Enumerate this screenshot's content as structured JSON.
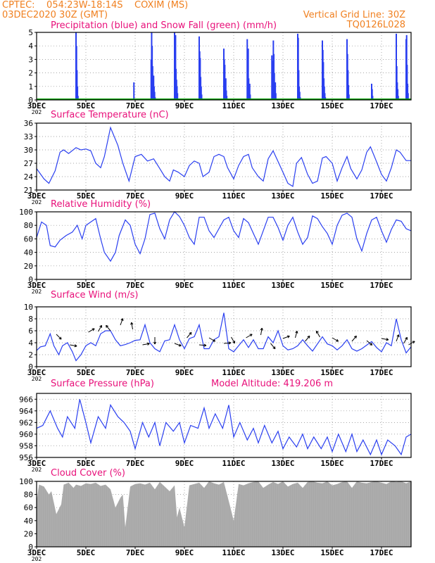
{
  "header": {
    "line1": "CPTEC:    054:23W-18:14S    COXIM (MS)",
    "line2": "03DEC2020 30Z (GMT)",
    "right1": "Vertical Grid Line: 30Z",
    "right2": "TQ0126L028",
    "color": "#f08020"
  },
  "colors": {
    "line": "#2a3ff0",
    "snow": "#00a000",
    "title": "#e8107a",
    "cloud": "#a8a8a8",
    "frame": "#000000"
  },
  "x_axis": {
    "start_day": 3,
    "end_day": 18.2,
    "tick_days": [
      3,
      5,
      7,
      9,
      11,
      13,
      15,
      17
    ],
    "tick_labels": [
      "3DEC",
      "5DEC",
      "7DEC",
      "9DEC",
      "11DEC",
      "13DEC",
      "15DEC",
      "17DEC"
    ],
    "first_tick_sublabel": "202"
  },
  "chart_data": [
    {
      "type": "bar",
      "title": "Precipitation (blue) and Snow Fall (green) (mm/h)",
      "ylim": [
        0,
        5
      ],
      "yticks": [
        0,
        1,
        2,
        3,
        4,
        5
      ],
      "series": [
        {
          "name": "Precipitation",
          "color": "#2a3ff0",
          "x": [
            4.6,
            4.62,
            4.64,
            4.66,
            4.68,
            6.95,
            7.65,
            7.67,
            7.69,
            7.71,
            7.73,
            7.75,
            7.77,
            7.79,
            7.81,
            8.6,
            8.62,
            8.64,
            8.66,
            8.68,
            8.7,
            8.72,
            9.6,
            9.62,
            9.64,
            9.66,
            9.68,
            9.7,
            10.6,
            10.62,
            10.64,
            10.66,
            10.68,
            10.7,
            10.72,
            11.55,
            11.57,
            11.59,
            11.61,
            11.63,
            11.65,
            11.67,
            12.55,
            12.57,
            12.59,
            12.61,
            12.63,
            12.65,
            12.67,
            12.69,
            12.71,
            13.6,
            13.62,
            13.64,
            13.66,
            13.68,
            13.7,
            14.6,
            14.62,
            14.64,
            14.66,
            14.68,
            14.7,
            14.72,
            15.6,
            15.62,
            15.64,
            15.66,
            15.68,
            16.6,
            16.62,
            16.64,
            17.6,
            17.62,
            17.64,
            17.66,
            17.68,
            18.0,
            18.02,
            18.04,
            18.06,
            18.08
          ],
          "values": [
            5.0,
            4.0,
            2.2,
            1.0,
            0.3,
            1.3,
            3.0,
            5.0,
            4.0,
            2.5,
            1.5,
            1.8,
            1.0,
            0.6,
            0.2,
            5.0,
            3.5,
            4.8,
            2.3,
            1.5,
            1.0,
            0.5,
            4.7,
            3.6,
            3.1,
            1.7,
            1.0,
            0.4,
            3.8,
            3.0,
            2.6,
            1.4,
            1.6,
            0.7,
            0.3,
            4.5,
            3.1,
            3.8,
            1.6,
            1.0,
            1.2,
            0.4,
            3.3,
            2.9,
            2.6,
            4.4,
            3.4,
            2.0,
            1.0,
            1.3,
            0.5,
            4.9,
            4.6,
            2.2,
            1.0,
            0.6,
            0.2,
            4.4,
            3.7,
            2.8,
            1.6,
            1.0,
            0.5,
            0.2,
            4.5,
            3.4,
            2.2,
            1.1,
            0.4,
            1.2,
            0.8,
            0.3,
            4.9,
            2.5,
            1.3,
            0.8,
            0.3,
            4.5,
            4.8,
            2.6,
            1.2,
            0.5
          ]
        },
        {
          "name": "Snow Fall",
          "color": "#00a000",
          "x": [
            3,
            18.2
          ],
          "values": [
            0,
            0
          ]
        }
      ]
    },
    {
      "type": "line",
      "title": "Surface Temperature (nC)",
      "ylim": [
        21,
        36
      ],
      "yticks": [
        21,
        24,
        27,
        30,
        33,
        36
      ],
      "series": [
        {
          "name": "Temperature",
          "color": "#2a3ff0",
          "x": [
            3,
            3.3,
            3.5,
            3.75,
            3.95,
            4.1,
            4.3,
            4.6,
            4.8,
            5.0,
            5.2,
            5.4,
            5.6,
            5.75,
            6.0,
            6.3,
            6.5,
            6.75,
            7.0,
            7.25,
            7.5,
            7.75,
            8.0,
            8.2,
            8.4,
            8.55,
            8.75,
            9.0,
            9.2,
            9.4,
            9.6,
            9.75,
            10.0,
            10.2,
            10.4,
            10.6,
            10.75,
            11.0,
            11.2,
            11.4,
            11.6,
            11.75,
            12.0,
            12.2,
            12.4,
            12.6,
            12.75,
            13.0,
            13.2,
            13.4,
            13.55,
            13.75,
            14.0,
            14.2,
            14.4,
            14.6,
            14.75,
            15.0,
            15.2,
            15.4,
            15.6,
            15.75,
            16.0,
            16.2,
            16.4,
            16.55,
            16.75,
            17.0,
            17.2,
            17.4,
            17.6,
            17.75,
            18.0,
            18.2
          ],
          "values": [
            25.8,
            23.5,
            22.5,
            25.3,
            29.5,
            30.0,
            29.2,
            30.5,
            30.0,
            30.2,
            29.8,
            27.0,
            26.0,
            28.5,
            35.0,
            31.0,
            27.0,
            23.0,
            28.5,
            29.0,
            27.5,
            28.0,
            25.8,
            24.0,
            23.0,
            25.5,
            25.0,
            24.0,
            26.5,
            27.5,
            27.0,
            24.0,
            25.0,
            28.5,
            29.0,
            28.5,
            26.0,
            23.5,
            26.5,
            28.5,
            29.0,
            26.0,
            24.0,
            23.0,
            28.0,
            29.8,
            28.0,
            25.0,
            22.5,
            21.8,
            27.0,
            28.3,
            24.5,
            22.5,
            23.0,
            28.2,
            28.5,
            27.0,
            23.0,
            26.0,
            28.5,
            25.8,
            23.5,
            25.5,
            29.5,
            30.7,
            28.0,
            24.5,
            23.0,
            26.0,
            30.0,
            29.5,
            27.6,
            27.6
          ]
        }
      ]
    },
    {
      "type": "line",
      "title": "Relative Humidity (%)",
      "ylim": [
        0,
        100
      ],
      "yticks": [
        0,
        20,
        40,
        60,
        80,
        100
      ],
      "series": [
        {
          "name": "Relative Humidity",
          "color": "#2a3ff0",
          "x": [
            3,
            3.2,
            3.4,
            3.55,
            3.75,
            3.95,
            4.2,
            4.45,
            4.65,
            4.85,
            5.0,
            5.2,
            5.4,
            5.6,
            5.75,
            6.0,
            6.2,
            6.35,
            6.6,
            6.8,
            7.0,
            7.2,
            7.4,
            7.6,
            7.8,
            8.0,
            8.2,
            8.4,
            8.6,
            8.8,
            9.0,
            9.2,
            9.4,
            9.6,
            9.8,
            10.0,
            10.2,
            10.4,
            10.6,
            10.8,
            11.0,
            11.2,
            11.4,
            11.6,
            11.8,
            12.0,
            12.2,
            12.4,
            12.6,
            12.8,
            13.0,
            13.2,
            13.4,
            13.6,
            13.8,
            14.0,
            14.2,
            14.4,
            14.6,
            14.8,
            15.0,
            15.2,
            15.4,
            15.6,
            15.8,
            16.0,
            16.2,
            16.4,
            16.6,
            16.8,
            17.0,
            17.2,
            17.4,
            17.6,
            17.8,
            18.0,
            18.2
          ],
          "values": [
            62,
            85,
            80,
            50,
            48,
            58,
            65,
            70,
            80,
            60,
            80,
            85,
            90,
            60,
            40,
            27,
            40,
            65,
            88,
            80,
            52,
            38,
            60,
            96,
            98,
            75,
            60,
            88,
            100,
            93,
            80,
            62,
            52,
            92,
            92,
            72,
            62,
            75,
            88,
            92,
            72,
            62,
            90,
            84,
            68,
            52,
            72,
            92,
            92,
            77,
            58,
            80,
            92,
            70,
            52,
            62,
            94,
            90,
            78,
            68,
            52,
            80,
            95,
            98,
            92,
            60,
            42,
            68,
            88,
            92,
            72,
            55,
            74,
            88,
            86,
            75,
            72
          ]
        }
      ]
    },
    {
      "type": "line",
      "title": "Surface Wind (m/s)",
      "ylim": [
        0,
        10
      ],
      "yticks": [
        0,
        2,
        4,
        6,
        8,
        10
      ],
      "series": [
        {
          "name": "Wind speed",
          "color": "#2a3ff0",
          "x": [
            3,
            3.15,
            3.35,
            3.55,
            3.7,
            3.9,
            4.05,
            4.25,
            4.45,
            4.6,
            4.8,
            5.0,
            5.2,
            5.4,
            5.6,
            5.8,
            6.0,
            6.2,
            6.4,
            6.6,
            6.8,
            7.0,
            7.2,
            7.4,
            7.6,
            7.8,
            8.0,
            8.2,
            8.4,
            8.6,
            8.8,
            9.0,
            9.2,
            9.4,
            9.6,
            9.8,
            10.0,
            10.2,
            10.4,
            10.6,
            10.8,
            11.0,
            11.2,
            11.4,
            11.6,
            11.8,
            12.0,
            12.2,
            12.4,
            12.6,
            12.8,
            13.0,
            13.2,
            13.4,
            13.6,
            13.8,
            14.0,
            14.2,
            14.4,
            14.6,
            14.8,
            15.0,
            15.2,
            15.4,
            15.6,
            15.8,
            16.0,
            16.2,
            16.4,
            16.6,
            16.8,
            17.0,
            17.2,
            17.4,
            17.6,
            17.8,
            18.0,
            18.2
          ],
          "values": [
            2.7,
            3.3,
            3.5,
            5.5,
            3.5,
            2.0,
            3.5,
            4.0,
            2.5,
            1.0,
            2.0,
            3.5,
            4.0,
            3.5,
            5.5,
            6.0,
            6.0,
            4.5,
            3.5,
            3.7,
            4.0,
            4.4,
            4.5,
            7.0,
            4.0,
            3.0,
            2.5,
            4.3,
            4.5,
            7.0,
            4.5,
            3.0,
            4.7,
            5.0,
            7.0,
            3.0,
            3.0,
            4.5,
            5.0,
            9.0,
            3.0,
            2.5,
            3.5,
            4.5,
            3.2,
            4.5,
            3.0,
            3.0,
            5.0,
            4.0,
            6.0,
            3.5,
            2.8,
            3.0,
            3.5,
            4.5,
            3.5,
            2.6,
            3.8,
            5.0,
            3.8,
            3.5,
            2.8,
            3.5,
            4.5,
            3.0,
            2.6,
            3.0,
            3.6,
            4.2,
            3.2,
            2.5,
            4.0,
            3.5,
            8.0,
            4.5,
            2.3,
            3.3
          ]
        }
      ]
    },
    {
      "type": "line",
      "title": "Surface Pressure (hPa)",
      "annotation": "Model Altitude: 419.206  m",
      "ylim": [
        956,
        967
      ],
      "yticks": [
        956,
        958,
        960,
        962,
        964,
        966
      ],
      "series": [
        {
          "name": "Surface Pressure",
          "color": "#2a3ff0",
          "x": [
            3,
            3.25,
            3.55,
            3.85,
            4.05,
            4.25,
            4.55,
            4.75,
            5.0,
            5.2,
            5.5,
            5.8,
            6.0,
            6.3,
            6.55,
            6.8,
            7.0,
            7.3,
            7.55,
            7.8,
            8.0,
            8.25,
            8.55,
            8.8,
            9.0,
            9.25,
            9.55,
            9.8,
            10.0,
            10.25,
            10.55,
            10.8,
            11.0,
            11.25,
            11.55,
            11.8,
            12.0,
            12.25,
            12.55,
            12.8,
            13.0,
            13.25,
            13.55,
            13.8,
            14.0,
            14.25,
            14.55,
            14.8,
            15.0,
            15.25,
            15.55,
            15.8,
            16.0,
            16.25,
            16.55,
            16.8,
            17.0,
            17.25,
            17.55,
            17.8,
            18.0,
            18.2
          ],
          "values": [
            961.0,
            961.5,
            964.0,
            961.0,
            959.5,
            963.0,
            961.0,
            966.0,
            962.0,
            958.5,
            963.0,
            961.0,
            965.0,
            963.0,
            962.0,
            960.5,
            957.5,
            962.0,
            959.5,
            962.0,
            958.0,
            962.0,
            960.5,
            962.0,
            958.5,
            961.5,
            961.0,
            964.5,
            961.0,
            963.5,
            961.0,
            965.0,
            959.5,
            962.0,
            959.0,
            961.0,
            958.5,
            961.5,
            958.5,
            960.5,
            957.5,
            959.5,
            957.8,
            960.0,
            957.5,
            959.5,
            957.5,
            959.5,
            957.0,
            960.0,
            957.0,
            960.0,
            957.0,
            959.0,
            956.5,
            959.0,
            956.5,
            959.0,
            958.0,
            956.5,
            959.5,
            960.0
          ]
        }
      ],
      "wind_barbs_note": ""
    },
    {
      "type": "area",
      "title": "Cloud Cover (%)",
      "ylim": [
        0,
        100
      ],
      "yticks": [
        0,
        20,
        40,
        60,
        80,
        100
      ],
      "series": [
        {
          "name": "Cloud Cover",
          "color": "#a8a8a8",
          "x": [
            3,
            3.1,
            3.3,
            3.5,
            3.6,
            3.8,
            4.0,
            4.1,
            4.3,
            4.5,
            4.6,
            4.8,
            5.0,
            5.2,
            5.4,
            5.6,
            5.8,
            6.0,
            6.2,
            6.4,
            6.5,
            6.6,
            6.8,
            7.0,
            7.2,
            7.4,
            7.6,
            7.8,
            8.0,
            8.2,
            8.4,
            8.6,
            8.7,
            8.8,
            9.0,
            9.2,
            9.4,
            9.6,
            9.8,
            10.0,
            10.2,
            10.4,
            10.6,
            10.8,
            11.0,
            11.2,
            11.4,
            11.6,
            11.8,
            12.0,
            12.2,
            12.4,
            12.6,
            12.8,
            13.0,
            13.2,
            13.4,
            13.6,
            13.8,
            14.0,
            14.2,
            14.4,
            14.6,
            14.8,
            15.0,
            15.2,
            15.4,
            15.6,
            15.8,
            16.0,
            16.2,
            16.4,
            16.6,
            16.8,
            17.0,
            17.2,
            17.4,
            17.6,
            17.8,
            18.0,
            18.2
          ],
          "values": [
            70,
            95,
            92,
            80,
            85,
            50,
            65,
            95,
            98,
            90,
            95,
            93,
            97,
            96,
            98,
            93,
            95,
            88,
            60,
            75,
            80,
            30,
            92,
            96,
            97,
            95,
            98,
            88,
            99,
            92,
            85,
            94,
            45,
            60,
            30,
            94,
            96,
            98,
            90,
            100,
            97,
            95,
            99,
            70,
            40,
            96,
            94,
            97,
            99,
            100,
            90,
            95,
            99,
            96,
            100,
            92,
            96,
            98,
            90,
            99,
            100,
            98,
            97,
            100,
            94,
            96,
            99,
            100,
            90,
            100,
            98,
            97,
            99,
            100,
            98,
            96,
            100,
            99,
            100,
            97,
            100
          ]
        }
      ]
    }
  ]
}
